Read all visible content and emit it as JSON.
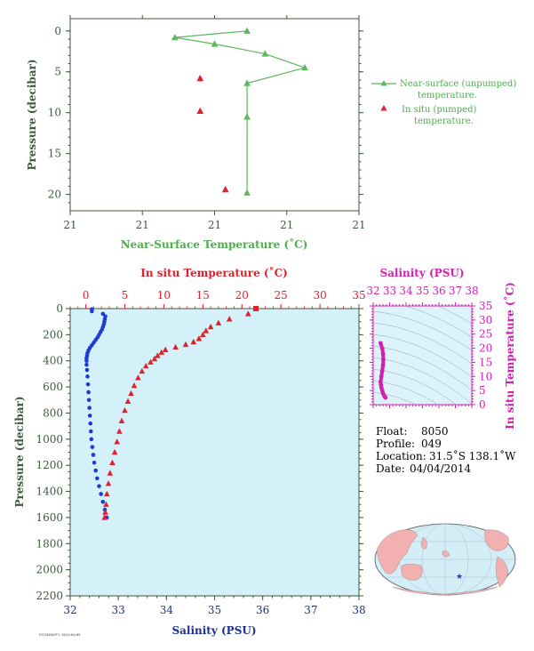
{
  "colors": {
    "green": "#5cb85c",
    "green_text": "#3a8f3a",
    "axis_text": "#3d5a3d",
    "red": "#e0202a",
    "blue": "#1f3bd6",
    "magenta": "#d21fb0",
    "plot_bg": "#d4f0f8",
    "ts_bg": "#dcf3fa",
    "navy": "#1a2f8f"
  },
  "chart_data": [
    {
      "type": "line",
      "name": "near-surface",
      "xlabel": "Near-Surface Temperature (˚C)",
      "ylabel": "Pressure (decibar)",
      "xlim": [
        20.6,
        21.4
      ],
      "ylim": [
        22,
        -1.5
      ],
      "x_tick_values": [
        20.6,
        20.8,
        21.0,
        21.2,
        21.4
      ],
      "x_tick_labels": [
        "21",
        "21",
        "21",
        "21",
        "21"
      ],
      "y_ticks": [
        0,
        5,
        10,
        15,
        20
      ],
      "series": [
        {
          "name": "Near-surface (unpumped) temperature.",
          "kind": "line",
          "points": [
            [
              21.09,
              0.0
            ],
            [
              20.89,
              0.8
            ],
            [
              21.0,
              1.6
            ],
            [
              21.14,
              2.8
            ],
            [
              21.25,
              4.5
            ],
            [
              21.09,
              6.4
            ],
            [
              21.09,
              10.5
            ],
            [
              21.09,
              19.8
            ]
          ]
        },
        {
          "name": "In situ (pumped) temperature.",
          "kind": "scatter",
          "points": [
            [
              20.96,
              5.8
            ],
            [
              20.96,
              9.8
            ],
            [
              21.03,
              19.4
            ]
          ]
        }
      ],
      "legend": {
        "entries": [
          [
            "Near-surface (unpumped)",
            "temperature."
          ],
          [
            "In situ (pumped)",
            "temperature."
          ]
        ],
        "position": "right"
      }
    },
    {
      "type": "scatter",
      "name": "profile",
      "xlabel": "Salinity (PSU)",
      "x2label": "In situ Temperature (˚C)",
      "ylabel": "Pressure (decibar)",
      "xlim": [
        32,
        38
      ],
      "x2lim": [
        -2,
        35
      ],
      "ylim": [
        2200,
        0
      ],
      "x_ticks": [
        32,
        33,
        34,
        35,
        36,
        37,
        38
      ],
      "x2_ticks": [
        0,
        5,
        10,
        15,
        20,
        25,
        30,
        35
      ],
      "y_ticks": [
        0,
        200,
        400,
        600,
        800,
        1000,
        1200,
        1400,
        1600,
        1800,
        2000,
        2200
      ],
      "temperature": [
        [
          21.8,
          0
        ],
        [
          20.8,
          40
        ],
        [
          18.4,
          80
        ],
        [
          17.0,
          110
        ],
        [
          16.0,
          140
        ],
        [
          15.4,
          170
        ],
        [
          15.0,
          200
        ],
        [
          14.5,
          230
        ],
        [
          13.8,
          255
        ],
        [
          12.8,
          275
        ],
        [
          11.5,
          295
        ],
        [
          10.2,
          315
        ],
        [
          9.7,
          335
        ],
        [
          9.2,
          360
        ],
        [
          8.8,
          385
        ],
        [
          8.3,
          410
        ],
        [
          7.7,
          440
        ],
        [
          7.2,
          480
        ],
        [
          6.7,
          530
        ],
        [
          6.2,
          590
        ],
        [
          5.8,
          650
        ],
        [
          5.4,
          710
        ],
        [
          5.0,
          780
        ],
        [
          4.6,
          860
        ],
        [
          4.3,
          940
        ],
        [
          4.0,
          1020
        ],
        [
          3.7,
          1100
        ],
        [
          3.4,
          1180
        ],
        [
          3.1,
          1260
        ],
        [
          2.9,
          1340
        ],
        [
          2.7,
          1420
        ],
        [
          2.6,
          1500
        ],
        [
          2.5,
          1560
        ],
        [
          2.4,
          1600
        ]
      ],
      "salinity": [
        [
          32.45,
          5
        ],
        [
          32.45,
          20
        ],
        [
          32.68,
          40
        ],
        [
          32.73,
          60
        ],
        [
          32.72,
          80
        ],
        [
          32.71,
          100
        ],
        [
          32.7,
          120
        ],
        [
          32.68,
          140
        ],
        [
          32.66,
          160
        ],
        [
          32.63,
          180
        ],
        [
          32.6,
          200
        ],
        [
          32.57,
          220
        ],
        [
          32.53,
          240
        ],
        [
          32.49,
          260
        ],
        [
          32.45,
          280
        ],
        [
          32.41,
          300
        ],
        [
          32.38,
          320
        ],
        [
          32.36,
          340
        ],
        [
          32.35,
          360
        ],
        [
          32.34,
          380
        ],
        [
          32.34,
          400
        ],
        [
          32.34,
          430
        ],
        [
          32.35,
          470
        ],
        [
          32.36,
          520
        ],
        [
          32.37,
          580
        ],
        [
          32.38,
          640
        ],
        [
          32.39,
          700
        ],
        [
          32.4,
          760
        ],
        [
          32.41,
          820
        ],
        [
          32.42,
          880
        ],
        [
          32.43,
          940
        ],
        [
          32.44,
          1000
        ],
        [
          32.46,
          1060
        ],
        [
          32.48,
          1120
        ],
        [
          32.5,
          1180
        ],
        [
          32.53,
          1240
        ],
        [
          32.56,
          1300
        ],
        [
          32.6,
          1360
        ],
        [
          32.64,
          1420
        ],
        [
          32.68,
          1480
        ],
        [
          32.72,
          1540
        ],
        [
          32.76,
          1600
        ]
      ]
    },
    {
      "type": "scatter",
      "name": "ts",
      "xlabel": "Salinity (PSU)",
      "ylabel": "In situ Temperature (˚C)",
      "xlim": [
        32,
        38
      ],
      "ylim": [
        0,
        35
      ],
      "x_ticks": [
        32,
        33,
        34,
        35,
        36,
        37,
        38
      ],
      "y_ticks": [
        0,
        5,
        10,
        15,
        20,
        25,
        30,
        35
      ],
      "points": [
        [
          32.45,
          21.8
        ],
        [
          32.55,
          20.0
        ],
        [
          32.6,
          18.0
        ],
        [
          32.62,
          16.0
        ],
        [
          32.6,
          14.0
        ],
        [
          32.55,
          12.0
        ],
        [
          32.5,
          10.0
        ],
        [
          32.45,
          8.0
        ],
        [
          32.48,
          7.0
        ],
        [
          32.5,
          6.0
        ],
        [
          32.55,
          5.0
        ],
        [
          32.6,
          4.0
        ],
        [
          32.68,
          3.0
        ],
        [
          32.75,
          2.5
        ]
      ]
    }
  ],
  "info": {
    "float_label": "Float:",
    "float_value": "8050",
    "profile_label": "Profile:",
    "profile_value": "049",
    "location_label": "Location:",
    "location_value": "31.5˚S  138.1˚W",
    "date_label": "Date:",
    "date_value": "04/04/2014"
  },
  "footer": {
    "stamp": "FSI7003A7F1 2014/04/09"
  },
  "map": {
    "marker": "★"
  }
}
